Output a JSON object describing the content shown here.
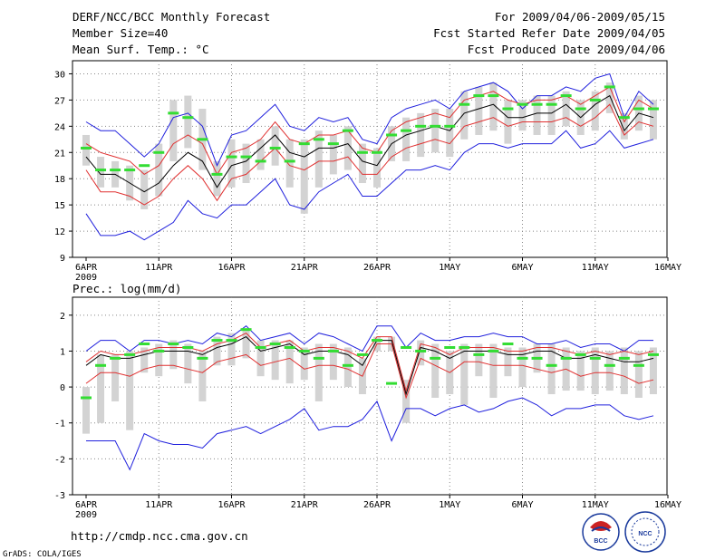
{
  "header": {
    "title": "DERF/NCC/BCC Monthly Forecast",
    "member_size": "Member Size=40",
    "variable1": "Mean Surf. Temp.: °C",
    "period": "For 2009/04/06-2009/05/15",
    "started": "Fcst Started Refer Date 2009/04/05",
    "produced": "Fcst Produced Date 2009/04/06"
  },
  "footer": {
    "url": "http://cmdp.ncc.cma.gov.cn",
    "credit": "GrADS: COLA/IGES",
    "logo1": "BCC",
    "logo2": "NCC"
  },
  "colors": {
    "box": "#d3d3d3",
    "green": "#33dd33",
    "red": "#e03030",
    "blue": "#2020dd",
    "black": "#000000",
    "grid": "#888888"
  },
  "chart_data": [
    {
      "type": "line",
      "title": "Mean Surf. Temp.: °C",
      "x_labels": [
        "6APR",
        "11APR",
        "16APR",
        "21APR",
        "26APR",
        "1MAY",
        "6MAY",
        "11MAY",
        "16MAY"
      ],
      "x_year": "2009",
      "days": 40,
      "ylim": [
        9,
        31.5
      ],
      "yticks": [
        9,
        12,
        15,
        18,
        21,
        24,
        27,
        30
      ],
      "series": [
        {
          "name": "max",
          "color": "blue",
          "values": [
            24.5,
            23.5,
            23.5,
            22,
            20.5,
            22,
            25,
            25.5,
            24,
            19.5,
            23,
            23.5,
            25,
            26.5,
            24,
            23.5,
            25,
            24.5,
            25,
            22.5,
            22,
            25,
            26,
            26.5,
            27,
            26,
            28,
            28.5,
            29,
            28,
            26,
            27.5,
            27.5,
            28.5,
            28,
            29.5,
            30,
            25,
            28,
            26.5
          ]
        },
        {
          "name": "upper",
          "color": "red",
          "values": [
            22,
            21,
            20.5,
            20,
            18.5,
            19.5,
            22,
            23,
            22,
            18.5,
            21,
            21.5,
            22.5,
            24.5,
            22.5,
            22,
            23,
            23,
            23.5,
            21.5,
            21,
            23.5,
            24.5,
            25,
            25.5,
            25,
            27,
            27.5,
            28,
            27,
            26.5,
            27,
            27,
            27.5,
            26.5,
            27.5,
            28.5,
            24.5,
            27,
            26
          ]
        },
        {
          "name": "mean",
          "color": "black",
          "values": [
            20.5,
            18.5,
            18.5,
            17.5,
            16.5,
            17.5,
            19.5,
            21,
            20,
            17,
            19.5,
            20,
            21.5,
            23,
            21,
            20.5,
            21.5,
            21.5,
            22,
            20,
            19.5,
            22,
            23,
            23.5,
            24,
            23.5,
            25.5,
            26,
            26.5,
            25,
            25,
            25.5,
            25.5,
            26.5,
            25,
            26.5,
            27.5,
            23.5,
            25.5,
            25
          ]
        },
        {
          "name": "lower",
          "color": "red",
          "values": [
            19,
            16.5,
            16.5,
            16,
            15,
            16,
            18,
            19.5,
            18,
            15.5,
            18,
            18.5,
            20,
            21.5,
            19.5,
            19,
            20,
            20,
            20.5,
            18.5,
            18.5,
            20.5,
            21.5,
            22,
            22.5,
            22,
            24,
            24.5,
            25,
            24,
            24.5,
            24.5,
            24.5,
            25,
            24,
            25,
            26.5,
            23,
            24.5,
            24
          ]
        },
        {
          "name": "min",
          "color": "blue",
          "values": [
            14,
            11.5,
            11.5,
            12,
            11,
            12,
            13,
            15.5,
            14,
            13.5,
            15,
            15,
            16.5,
            18,
            15,
            14.5,
            16.5,
            17.5,
            18.5,
            16,
            16,
            17.5,
            19,
            19,
            19.5,
            19,
            21,
            22,
            22,
            21.5,
            22,
            22,
            22,
            23.5,
            21.5,
            22,
            23.5,
            21.5,
            22,
            22.5
          ]
        },
        {
          "name": "observed",
          "color": "green",
          "values": [
            21.5,
            19,
            19,
            19,
            19.5,
            21,
            25.5,
            25,
            22.5,
            18.5,
            20.5,
            20.5,
            20,
            21.5,
            20,
            22,
            22.5,
            22,
            23.5,
            21,
            21,
            23,
            23.5,
            24,
            24,
            24,
            26.5,
            27.5,
            27.5,
            26,
            26.5,
            26.5,
            26.5,
            27.5,
            26,
            27,
            28.5,
            25,
            26,
            26
          ]
        },
        {
          "name": "box_top",
          "color": "box",
          "values": [
            23,
            20.5,
            20,
            19.5,
            19,
            22,
            27,
            27.5,
            26,
            20,
            22.5,
            22,
            22.5,
            24,
            22.5,
            22.5,
            23.5,
            23,
            24,
            22,
            21.5,
            24,
            25,
            25.5,
            26,
            26,
            28,
            28.5,
            29,
            27,
            27,
            27.5,
            27.5,
            28,
            27,
            28,
            29,
            25.5,
            27.5,
            27
          ]
        },
        {
          "name": "box_bottom",
          "color": "box",
          "values": [
            19.5,
            17,
            17,
            15.5,
            14.5,
            16,
            20,
            21.5,
            19,
            16,
            17,
            17.5,
            19,
            19.5,
            17,
            14,
            17,
            18.5,
            19,
            17.5,
            17,
            20,
            20,
            20.5,
            21,
            20.5,
            22.5,
            23,
            23.5,
            22,
            23.5,
            23,
            23,
            24,
            23,
            23.5,
            25.5,
            22.5,
            23.5,
            22.5
          ]
        }
      ]
    },
    {
      "type": "line",
      "title": "Prec.: log(mm/d)",
      "x_labels": [
        "6APR",
        "11APR",
        "16APR",
        "21APR",
        "26APR",
        "1MAY",
        "6MAY",
        "11MAY",
        "16MAY"
      ],
      "x_year": "2009",
      "days": 40,
      "ylim": [
        -3,
        2.5
      ],
      "yticks": [
        -3,
        -2,
        -1,
        0,
        1,
        2
      ],
      "series": [
        {
          "name": "max",
          "color": "blue",
          "values": [
            1,
            1.3,
            1.3,
            1,
            1.3,
            1.3,
            1.2,
            1.3,
            1.2,
            1.5,
            1.4,
            1.7,
            1.3,
            1.4,
            1.5,
            1.2,
            1.5,
            1.4,
            1.2,
            1,
            1.7,
            1.7,
            1.1,
            1.5,
            1.3,
            1.3,
            1.4,
            1.4,
            1.5,
            1.4,
            1.4,
            1.2,
            1.2,
            1.3,
            1.1,
            1.2,
            1.2,
            1,
            1.3,
            1.3
          ]
        },
        {
          "name": "upper",
          "color": "red",
          "values": [
            0.7,
            1,
            0.9,
            0.9,
            1,
            1.1,
            1.1,
            1.1,
            1,
            1.2,
            1.3,
            1.5,
            1.1,
            1.2,
            1.3,
            1,
            1.1,
            1.1,
            1,
            0.8,
            1.4,
            1.4,
            -0.1,
            1.2,
            1.1,
            0.9,
            1.1,
            1.1,
            1.1,
            1,
            1,
            1.1,
            1.1,
            1,
            0.9,
            1,
            0.9,
            1,
            0.9,
            1
          ]
        },
        {
          "name": "mean",
          "color": "black",
          "values": [
            0.6,
            0.9,
            0.8,
            0.8,
            0.9,
            1,
            1,
            1,
            0.9,
            1.1,
            1.2,
            1.4,
            1,
            1.1,
            1.2,
            0.9,
            1,
            1,
            0.9,
            0.6,
            1.3,
            1.3,
            -0.2,
            1.1,
            1,
            0.8,
            1,
            1,
            1,
            0.9,
            0.9,
            1,
            1,
            0.8,
            0.8,
            0.9,
            0.8,
            0.7,
            0.7,
            0.8
          ]
        },
        {
          "name": "lower",
          "color": "red",
          "values": [
            0.1,
            0.4,
            0.4,
            0.3,
            0.5,
            0.6,
            0.6,
            0.5,
            0.4,
            0.7,
            0.8,
            0.9,
            0.6,
            0.7,
            0.8,
            0.5,
            0.6,
            0.6,
            0.5,
            0.3,
            1.2,
            1.2,
            -0.3,
            0.8,
            0.6,
            0.4,
            0.7,
            0.7,
            0.6,
            0.6,
            0.6,
            0.5,
            0.4,
            0.5,
            0.3,
            0.4,
            0.4,
            0.3,
            0.1,
            0.2
          ]
        },
        {
          "name": "min",
          "color": "blue",
          "values": [
            -1.5,
            -1.5,
            -1.5,
            -2.3,
            -1.3,
            -1.5,
            -1.6,
            -1.6,
            -1.7,
            -1.3,
            -1.2,
            -1.1,
            -1.3,
            -1.1,
            -0.9,
            -0.6,
            -1.2,
            -1.1,
            -1.1,
            -0.9,
            -0.4,
            -1.5,
            -0.6,
            -0.6,
            -0.8,
            -0.6,
            -0.5,
            -0.7,
            -0.6,
            -0.4,
            -0.3,
            -0.5,
            -0.8,
            -0.6,
            -0.6,
            -0.5,
            -0.5,
            -0.8,
            -0.9,
            -0.8
          ]
        },
        {
          "name": "observed",
          "color": "green",
          "values": [
            -0.3,
            0.6,
            0.8,
            0.9,
            1.2,
            1,
            1.2,
            1.1,
            0.8,
            1.3,
            1.3,
            1.6,
            1.1,
            1.2,
            1.1,
            1,
            0.8,
            1,
            0.6,
            0.9,
            1.3,
            0.1,
            1.1,
            1,
            0.8,
            1.1,
            1.1,
            0.9,
            1,
            1.2,
            0.8,
            0.8,
            0.6,
            0.8,
            0.9,
            0.8,
            0.6,
            0.8,
            0.6,
            0.9
          ]
        },
        {
          "name": "box_top",
          "color": "box",
          "values": [
            0,
            0.9,
            0.9,
            1,
            1.1,
            1.2,
            1.3,
            1.2,
            1,
            1.4,
            1.5,
            1.6,
            1.3,
            1.3,
            1.3,
            1.1,
            1.2,
            1.2,
            1.1,
            0.8,
            1.4,
            1.4,
            0.2,
            1.3,
            1.2,
            1,
            1.2,
            1.2,
            1.2,
            1.1,
            1.1,
            1.2,
            1.2,
            1.1,
            1,
            1.1,
            1,
            1.1,
            1,
            1.1
          ]
        },
        {
          "name": "box_bottom",
          "color": "box",
          "values": [
            -1.3,
            -1,
            -0.4,
            -1.2,
            0.4,
            0.3,
            0.5,
            0.1,
            -0.4,
            0.6,
            0.6,
            0.8,
            0.3,
            0.2,
            0.1,
            0.2,
            -0.4,
            0.2,
            0,
            -0.2,
            1,
            1,
            -1,
            0.6,
            -0.3,
            -0.2,
            -0.5,
            0.3,
            -0.3,
            0.3,
            0,
            0.4,
            -0.2,
            -0.1,
            -0.1,
            -0.2,
            -0.1,
            -0.2,
            -0.3,
            -0.2
          ]
        }
      ]
    }
  ]
}
